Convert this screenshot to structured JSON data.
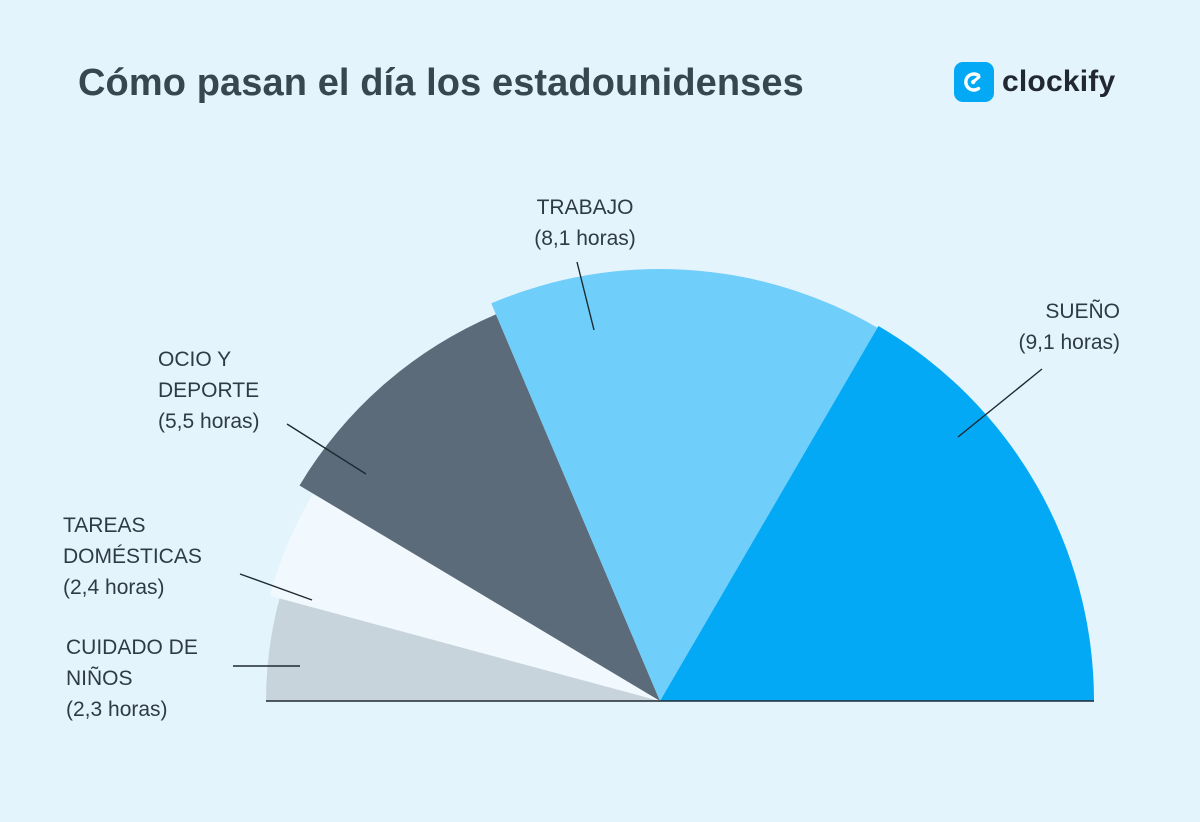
{
  "title": "Cómo pasan el día los estadounidenses",
  "brand": {
    "name": "clockify",
    "icon": "clockify-logo-icon",
    "color": "#03A9F4"
  },
  "chart_data": {
    "type": "pie",
    "variant": "half-pie",
    "unit": "horas",
    "title": "Cómo pasan el día los estadounidenses",
    "slices": [
      {
        "id": "cuidado",
        "label_lines": [
          "CUIDADO DE",
          "NIÑOS"
        ],
        "value_text": "(2,3 horas)",
        "value": 2.3,
        "color": "#C8D4DC"
      },
      {
        "id": "tareas",
        "label_lines": [
          "TAREAS",
          "DOMÉSTICAS"
        ],
        "value_text": "(2,4 horas)",
        "value": 2.4,
        "color": "#F2F9FE"
      },
      {
        "id": "ocio",
        "label_lines": [
          "OCIO Y",
          "DEPORTE"
        ],
        "value_text": "(5,5 horas)",
        "value": 5.5,
        "color": "#5B6B7A"
      },
      {
        "id": "trabajo",
        "label_lines": [
          "TRABAJO"
        ],
        "value_text": "(8,1 horas)",
        "value": 8.1,
        "color": "#70CEFB"
      },
      {
        "id": "sueno",
        "label_lines": [
          "SUEÑO"
        ],
        "value_text": "(9,1 horas)",
        "value": 9.1,
        "color": "#03A9F4"
      }
    ]
  }
}
